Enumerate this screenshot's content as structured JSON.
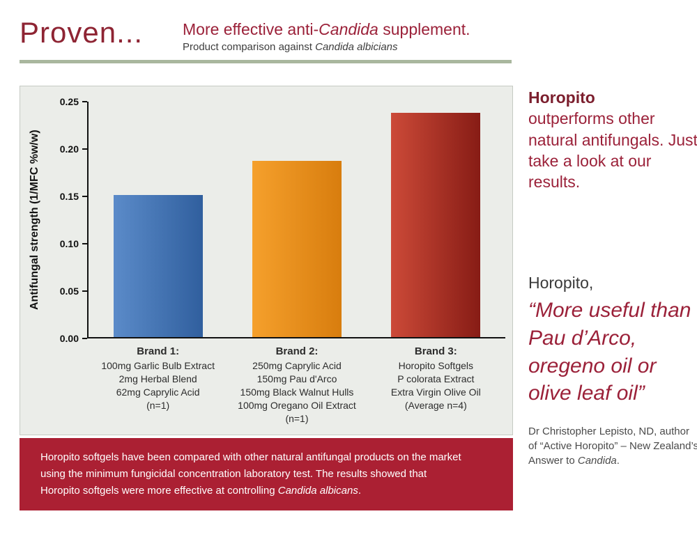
{
  "header": {
    "brand": "Proven...",
    "title": {
      "pre": "More effective anti-",
      "em": "Candida",
      "post": " supplement."
    },
    "subtitle": {
      "pre": "Product comparison against ",
      "em": "Candida albicians"
    }
  },
  "chart_data": {
    "type": "bar",
    "ylabel": "Antifungal strength (1/MFC %w/w)",
    "ylim": [
      0,
      0.25
    ],
    "yticks": [
      0,
      0.05,
      0.1,
      0.15,
      0.2,
      0.25
    ],
    "ytick_labels": [
      "0.00",
      "0.05",
      "0.10",
      "0.15",
      "0.20",
      "0.25"
    ],
    "values": [
      0.15,
      0.186,
      0.237
    ],
    "bar_colors": [
      {
        "light": "#5b8bc9",
        "dark": "#305f9e"
      },
      {
        "light": "#f5a02c",
        "dark": "#d87d0e"
      },
      {
        "light": "#cc4a38",
        "dark": "#871c15"
      }
    ],
    "grid": false,
    "legend": "none",
    "categories": [
      {
        "title": "Brand 1:",
        "lines": [
          "100mg Garlic Bulb Extract",
          "2mg Herbal Blend",
          "62mg Caprylic Acid",
          "(n=1)"
        ]
      },
      {
        "title": "Brand 2:",
        "lines": [
          "250mg Caprylic Acid",
          "150mg Pau d'Arco",
          "150mg Black Walnut Hulls",
          "100mg Oregano Oil Extract",
          "(n=1)"
        ]
      },
      {
        "title": "Brand 3:",
        "lines": [
          "Horopito Softgels",
          "P colorata Extract",
          "Extra Virgin Olive Oil",
          "(Average n=4)"
        ]
      }
    ]
  },
  "banner": {
    "pre": "Horopito softgels have been compared with other natural antifungal products on the market using the minimum fungicidal concentration laboratory test. The results showed that Horopito softgels were more effective at controlling ",
    "em": "Candida albicans",
    "post": "."
  },
  "sidebar": {
    "callout": {
      "bold": "Horopito",
      "rest": "outperforms other natural antifungals. Just take a look at our results."
    },
    "quote_heading": "Horopito,",
    "quote": "“More useful than Pau d’Arco, oregeno oil or olive leaf oil”",
    "attribution": {
      "pre": "Dr Christopher Lepisto, ND, author of “Active Horopito” –  New Zealand’s Answer to ",
      "em": "Candida",
      "post": "."
    }
  },
  "colors": {
    "maroon_text": "#9b2139",
    "maroon_dark": "#7c1f2e",
    "banner_bg": "#ab2033",
    "divider": "#a9b79e",
    "panel_bg": "#ebede9"
  }
}
